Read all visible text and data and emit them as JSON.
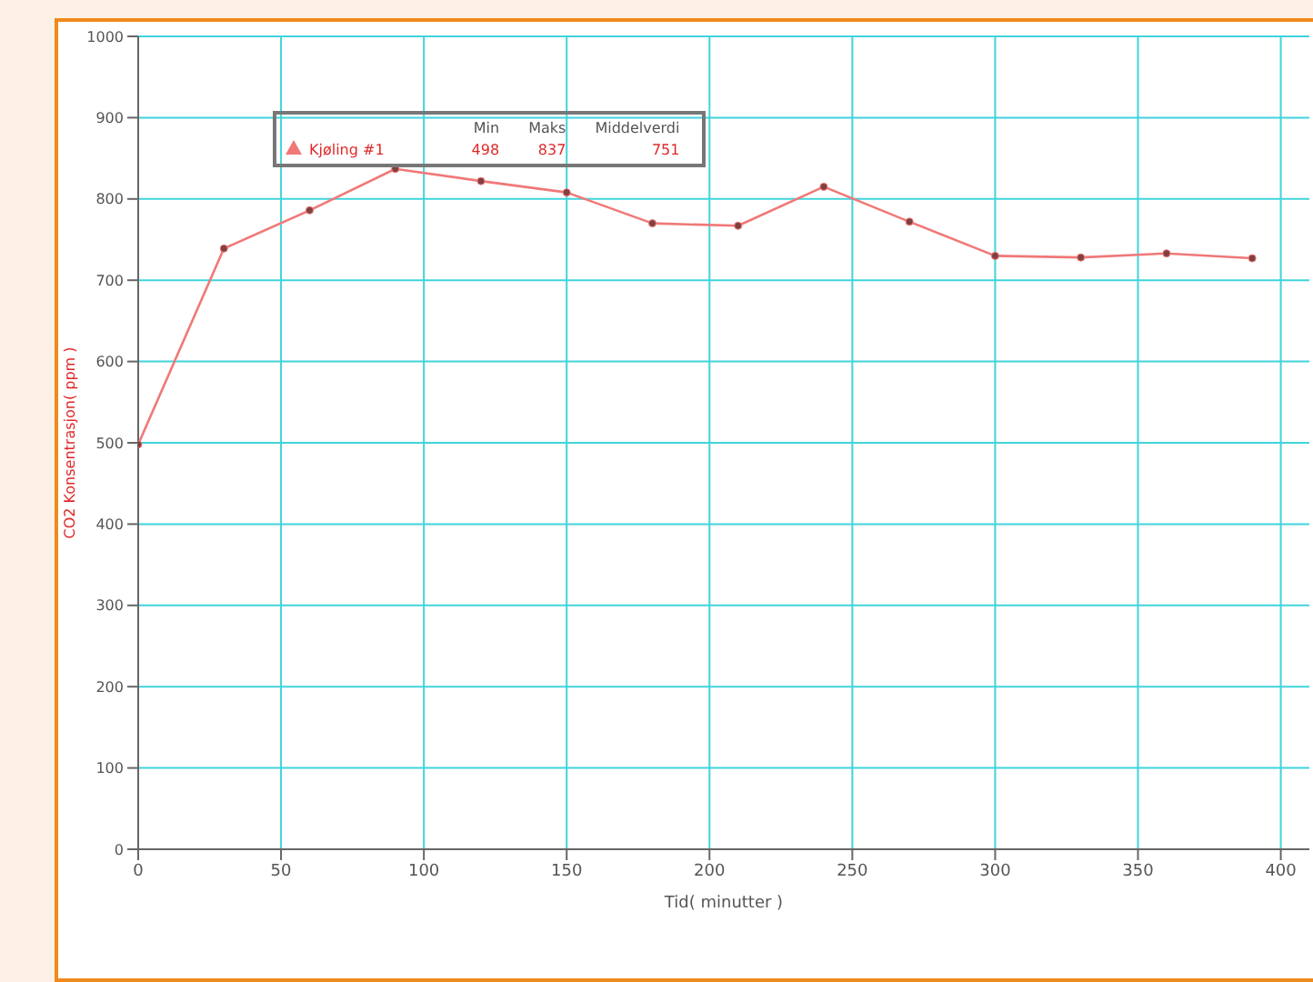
{
  "chart_data": {
    "type": "line",
    "xlabel": "Tid( minutter )",
    "ylabel": "CO2 Konsentrasjon( ppm )",
    "x": [
      0,
      30,
      60,
      90,
      120,
      150,
      180,
      210,
      240,
      270,
      300,
      330,
      360,
      390
    ],
    "series": [
      {
        "name": "Kjøling #1",
        "color": "#f07878",
        "values": [
          498,
          739,
          786,
          837,
          822,
          808,
          770,
          767,
          815,
          772,
          730,
          728,
          733,
          727
        ]
      }
    ],
    "xlim": [
      0,
      410
    ],
    "xticks": [
      0,
      50,
      100,
      150,
      200,
      250,
      300,
      350,
      400
    ],
    "ylim": [
      0,
      1000
    ],
    "yticks": [
      0,
      100,
      200,
      300,
      400,
      500,
      600,
      700,
      800,
      900,
      1000
    ],
    "grid": true,
    "legend": "top left",
    "marker": "circle",
    "line_style": "solid",
    "annotations": [
      "Min",
      "Maks",
      "Middelverdi",
      "498",
      "837",
      "751"
    ]
  }
}
